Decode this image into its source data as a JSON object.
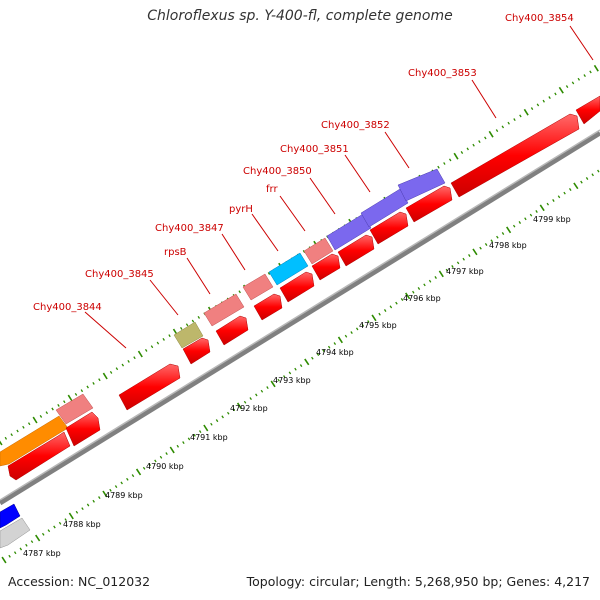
{
  "title": "Chloroflexus sp. Y-400-fl, complete genome",
  "footer": {
    "accession": "Accession: NC_012032",
    "summary": "Topology: circular; Length: 5,268,950 bp; Genes: 4,217"
  },
  "kbp_labels": [
    "4787 kbp",
    "4788 kbp",
    "4789 kbp",
    "4790 kbp",
    "4791 kbp",
    "4792 kbp",
    "4793 kbp",
    "4794 kbp",
    "4795 kbp",
    "4796 kbp",
    "4797 kbp",
    "4798 kbp",
    "4799 kbp"
  ],
  "gene_labels": [
    "Chy400_3844",
    "Chy400_3845",
    "rpsB",
    "Chy400_3847",
    "pyrH",
    "frr",
    "Chy400_3850",
    "Chy400_3851",
    "Chy400_3852",
    "Chy400_3853",
    "Chy400_3854"
  ],
  "colors": {
    "red": "#ff0000",
    "pink": "#f08080",
    "purple": "#7b68ee",
    "cyan": "#00bfff",
    "olive": "#bdb76b",
    "orange": "#ff8c00",
    "blue": "#0000ff",
    "grey": "#d3d3d3",
    "label": "#cc0000",
    "tick": "#2e8b00"
  }
}
